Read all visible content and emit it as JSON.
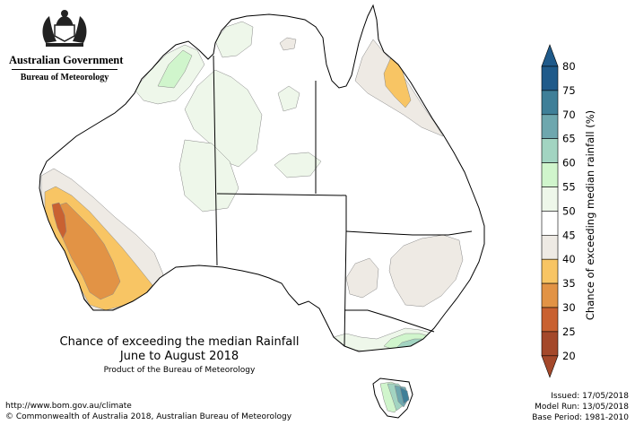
{
  "org": {
    "government": "Australian Government",
    "bureau": "Bureau of Meteorology"
  },
  "title": "Chance of exceeding the median Rainfall",
  "period": "June to August 2018",
  "product": "Product of the Bureau of Meteorology",
  "footer": {
    "url": "http://www.bom.gov.au/climate",
    "copyright": "© Commonwealth of Australia 2018, Australian Bureau of Meteorology"
  },
  "run_info": {
    "issued": "Issued: 17/05/2018",
    "model_run": "Model Run: 13/05/2018",
    "base_period": "Base Period: 1981-2010"
  },
  "legend": {
    "title": "Chance of exceeding median rainfall (%)",
    "bins": [
      {
        "from": 75,
        "to": 80,
        "color": "#1f5a8a"
      },
      {
        "from": 70,
        "to": 75,
        "color": "#3f7f98"
      },
      {
        "from": 65,
        "to": 70,
        "color": "#6ea7ae"
      },
      {
        "from": 60,
        "to": 65,
        "color": "#a2d4c1"
      },
      {
        "from": 55,
        "to": 60,
        "color": "#d0f5cc"
      },
      {
        "from": 50,
        "to": 55,
        "color": "#eef7ea"
      },
      {
        "from": 45,
        "to": 50,
        "color": "#ffffff"
      },
      {
        "from": 40,
        "to": 45,
        "color": "#eeeae4"
      },
      {
        "from": 35,
        "to": 40,
        "color": "#f8c564"
      },
      {
        "from": 30,
        "to": 35,
        "color": "#e29345"
      },
      {
        "from": 25,
        "to": 30,
        "color": "#c96131"
      },
      {
        "from": 20,
        "to": 25,
        "color": "#a4482a"
      }
    ],
    "ticks": [
      "80",
      "75",
      "70",
      "65",
      "60",
      "55",
      "50",
      "45",
      "40",
      "35",
      "30",
      "25",
      "20"
    ]
  },
  "map_colors": {
    "land_base": "#ffffff",
    "wetter_light": "#eef7ea",
    "wetter": "#d0f5cc",
    "wetter_mid": "#a2d4c1",
    "wetter_strong": "#6ea7ae",
    "wetter_max": "#3f7f98",
    "drier_light": "#eeeae4",
    "drier": "#f8c564",
    "drier_mid": "#e29345",
    "drier_strong": "#c96131"
  }
}
